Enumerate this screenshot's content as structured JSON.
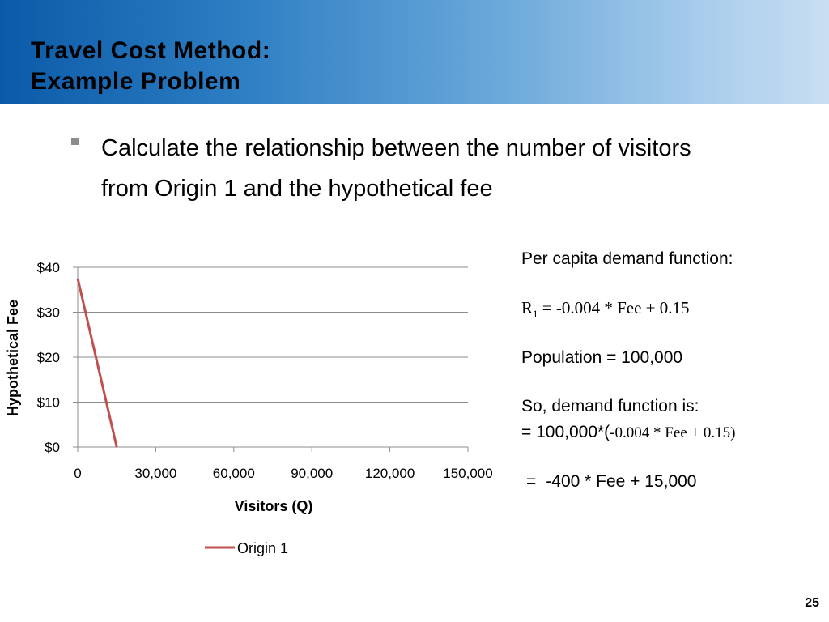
{
  "slide": {
    "title_line1": "Travel Cost Method:",
    "title_line2": "Example Problem",
    "bullet": "Calculate the relationship between the number of visitors from Origin 1 and the hypothetical fee",
    "page_number": "25"
  },
  "side_panel": {
    "heading": "Per capita demand function:",
    "equation_r": "R",
    "equation_sub": "1",
    "equation_rhs": " = -0.004 * Fee + 0.15",
    "population": "Population = 100,000",
    "so_line": "So, demand function is:",
    "demand_prefix": "= 100,000*(",
    "demand_rhs": "-0.004 * Fee + 0.15)",
    "result_eq": "=",
    "result_rhs": "-400 * Fee + 15,000"
  },
  "chart_data": {
    "type": "line",
    "xlabel": "Visitors (Q)",
    "ylabel": "Hypothetical Fee",
    "xlim": [
      0,
      150000
    ],
    "ylim": [
      0,
      40
    ],
    "x_ticks": [
      0,
      30000,
      60000,
      90000,
      120000,
      150000
    ],
    "x_tick_labels": [
      "0",
      "30,000",
      "60,000",
      "90,000",
      "120,000",
      "150,000"
    ],
    "y_ticks": [
      0,
      10,
      20,
      30,
      40
    ],
    "y_tick_labels": [
      "$0",
      "$10",
      "$20",
      "$30",
      "$40"
    ],
    "grid": "horizontal",
    "legend_position": "bottom",
    "series": [
      {
        "name": "Origin 1",
        "color": "#c0504d",
        "points": [
          [
            0,
            37.5
          ],
          [
            15000,
            0
          ]
        ]
      }
    ]
  }
}
